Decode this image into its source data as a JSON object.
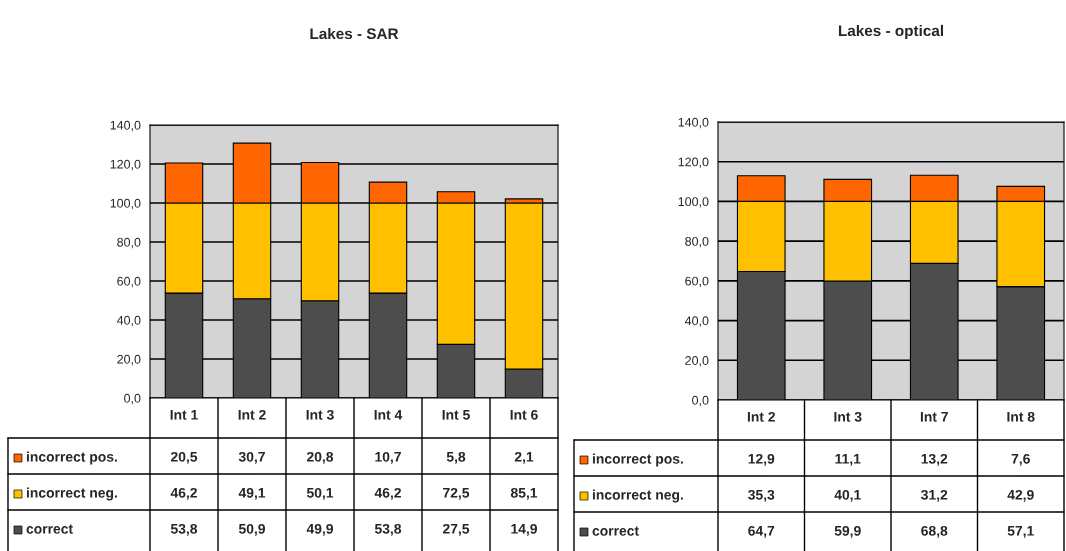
{
  "chart_data": [
    {
      "type": "bar",
      "title": "Lakes - SAR",
      "categories": [
        "Int 1",
        "Int 2",
        "Int 3",
        "Int 4",
        "Int 5",
        "Int 6"
      ],
      "stacked": true,
      "grid": "y",
      "legend": "bottom",
      "ylim": [
        0,
        140
      ],
      "yticks": [
        {
          "value": 0,
          "label": "0,0"
        },
        {
          "value": 20,
          "label": "20,0"
        },
        {
          "value": 40,
          "label": "40,0"
        },
        {
          "value": 60,
          "label": "60,0"
        },
        {
          "value": 80,
          "label": "80,0"
        },
        {
          "value": 100,
          "label": "100,0"
        },
        {
          "value": 120,
          "label": "120,0"
        },
        {
          "value": 140,
          "label": "140,0"
        }
      ],
      "series": [
        {
          "name": "correct",
          "color": "#4d4d4d",
          "values": [
            53.8,
            50.9,
            49.9,
            53.8,
            27.5,
            14.9
          ],
          "value_labels": [
            "53,8",
            "50,9",
            "49,9",
            "53,8",
            "27,5",
            "14,9"
          ]
        },
        {
          "name": "incorrect neg.",
          "color": "#ffc000",
          "values": [
            46.2,
            49.1,
            50.1,
            46.2,
            72.5,
            85.1
          ],
          "value_labels": [
            "46,2",
            "49,1",
            "50,1",
            "46,2",
            "72,5",
            "85,1"
          ]
        },
        {
          "name": "incorrect pos.",
          "color": "#ff6600",
          "values": [
            20.5,
            30.7,
            20.8,
            10.7,
            5.8,
            2.1
          ],
          "value_labels": [
            "20,5",
            "30,7",
            "20,8",
            "10,7",
            "5,8",
            "2,1"
          ]
        }
      ]
    },
    {
      "type": "bar",
      "title": "Lakes - optical",
      "categories": [
        "Int 2",
        "Int 3",
        "Int 7",
        "Int 8"
      ],
      "stacked": true,
      "grid": "y",
      "legend": "bottom",
      "ylim": [
        0,
        140
      ],
      "yticks": [
        {
          "value": 0,
          "label": "0,0"
        },
        {
          "value": 20,
          "label": "20,0"
        },
        {
          "value": 40,
          "label": "40,0"
        },
        {
          "value": 60,
          "label": "60,0"
        },
        {
          "value": 80,
          "label": "80,0"
        },
        {
          "value": 100,
          "label": "100,0"
        },
        {
          "value": 120,
          "label": "120,0"
        },
        {
          "value": 140,
          "label": "140,0"
        }
      ],
      "series": [
        {
          "name": "correct",
          "color": "#4d4d4d",
          "values": [
            64.7,
            59.9,
            68.8,
            57.1
          ],
          "value_labels": [
            "64,7",
            "59,9",
            "68,8",
            "57,1"
          ]
        },
        {
          "name": "incorrect neg.",
          "color": "#ffc000",
          "values": [
            35.3,
            40.1,
            31.2,
            42.9
          ],
          "value_labels": [
            "35,3",
            "40,1",
            "31,2",
            "42,9"
          ]
        },
        {
          "name": "incorrect pos.",
          "color": "#ff6600",
          "values": [
            12.9,
            11.1,
            13.2,
            7.6
          ],
          "value_labels": [
            "12,9",
            "11,1",
            "13,2",
            "7,6"
          ]
        }
      ]
    }
  ]
}
